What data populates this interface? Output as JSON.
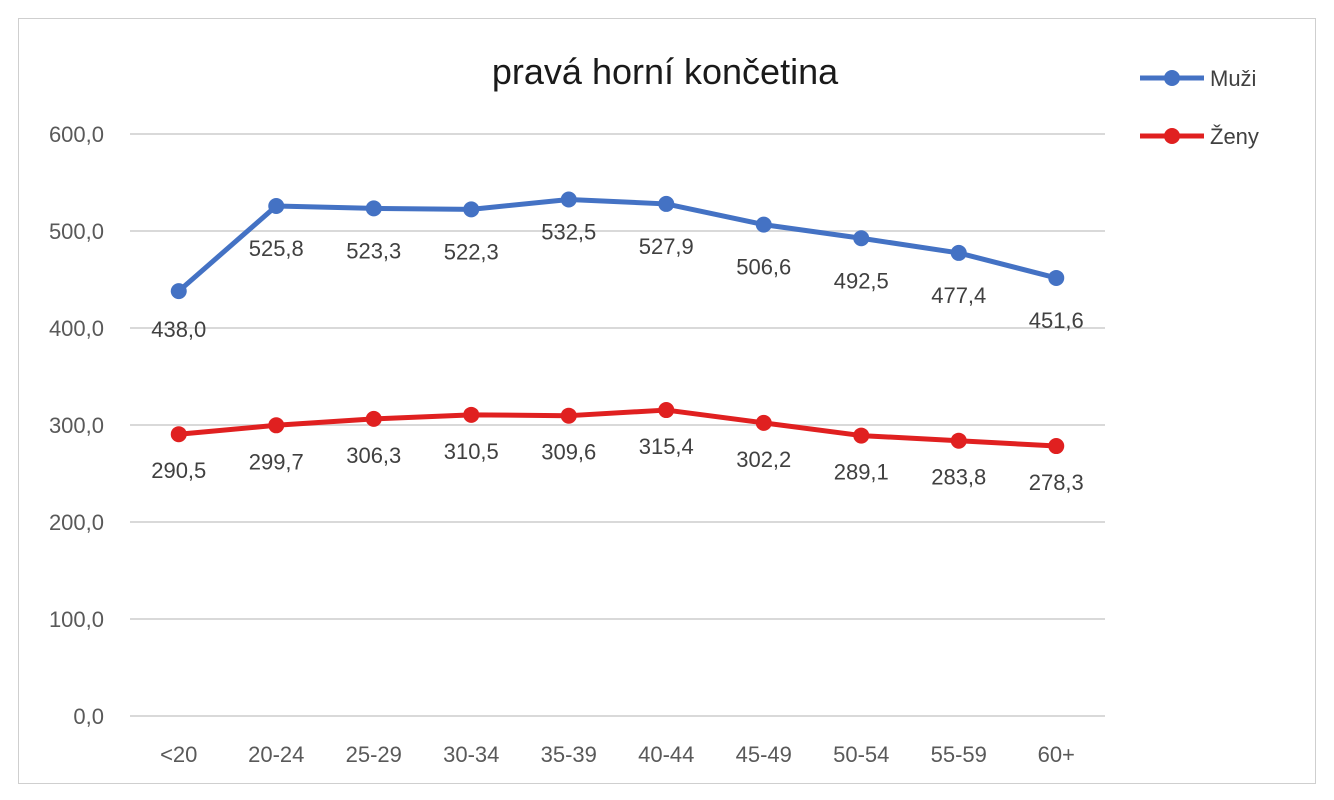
{
  "chart_data": {
    "type": "line",
    "title": "pravá horní končetina",
    "xlabel": "",
    "ylabel": "",
    "categories": [
      "<20",
      "20-24",
      "25-29",
      "30-34",
      "35-39",
      "40-44",
      "45-49",
      "50-54",
      "55-59",
      "60+"
    ],
    "y_tick_labels": [
      "0,0",
      "100,0",
      "200,0",
      "300,0",
      "400,0",
      "500,0",
      "600,0"
    ],
    "y_ticks": [
      0,
      100,
      200,
      300,
      400,
      500,
      600
    ],
    "ylim": [
      0,
      600
    ],
    "grid": true,
    "legend_position": "top-right",
    "series": [
      {
        "name": "Muži",
        "color": "#4472c4",
        "values": [
          438.0,
          525.8,
          523.3,
          522.3,
          532.5,
          527.9,
          506.6,
          492.5,
          477.4,
          451.6
        ],
        "labels": [
          "438,0",
          "525,8",
          "523,3",
          "522,3",
          "532,5",
          "527,9",
          "506,6",
          "492,5",
          "477,4",
          "451,6"
        ]
      },
      {
        "name": "Ženy",
        "color": "#e02020",
        "values": [
          290.5,
          299.7,
          306.3,
          310.5,
          309.6,
          315.4,
          302.2,
          289.1,
          283.8,
          278.3
        ],
        "labels": [
          "290,5",
          "299,7",
          "306,3",
          "310,5",
          "309,6",
          "315,4",
          "302,2",
          "289,1",
          "283,8",
          "278,3"
        ]
      }
    ]
  }
}
